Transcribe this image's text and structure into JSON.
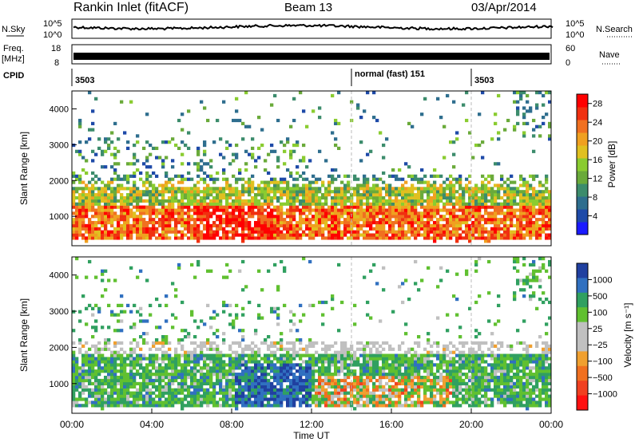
{
  "header": {
    "station": "Rankin Inlet (fitACF)",
    "beam": "Beam 13",
    "date": "03/Apr/2014"
  },
  "status_panels": {
    "nsky_label": "N.Sky",
    "nsearch_label": "N.Search",
    "noise_ticks": [
      "10^5",
      "10^0"
    ],
    "freq_label": "Freq.",
    "freq_unit": "[MHz]",
    "freq_ticks": [
      "18",
      "8"
    ],
    "nave_label": "Nave",
    "nave_ticks": [
      "60",
      "0"
    ],
    "cpid_label": "CPID",
    "cpid_segments": [
      {
        "label": "3503",
        "start_h": 0
      },
      {
        "label": "normal (fast) 151",
        "start_h": 14
      },
      {
        "label": "3503",
        "start_h": 20
      }
    ]
  },
  "colors": {
    "power_scale": [
      "#1a1aff",
      "#1e4aa8",
      "#2e6e8e",
      "#3c8c6c",
      "#6aaa3a",
      "#8acc30",
      "#e0c020",
      "#f0a020",
      "#f07020",
      "#f03010",
      "#ff0000"
    ],
    "velocity_scale": [
      "#2040a0",
      "#3070c0",
      "#30a060",
      "#60c030",
      "#c0c0c0",
      "#c0c0c0",
      "#f0a030",
      "#f07020",
      "#f04020",
      "#ff1010"
    ]
  },
  "chart_data": [
    {
      "type": "heatmap",
      "name": "power",
      "xlabel": "Time UT",
      "ylabel": "Slant Range [km]",
      "xlim": [
        0,
        24
      ],
      "ylim": [
        180,
        4500
      ],
      "y_ticks": [
        "1000",
        "2000",
        "3000",
        "4000"
      ],
      "colorbar_label": "Power [dB]",
      "colorbar_ticks": [
        "4",
        "8",
        "12",
        "16",
        "20",
        "24",
        "28"
      ],
      "colorbar_range": [
        0,
        30
      ],
      "data_boundaries_h": [
        14,
        20
      ]
    },
    {
      "type": "heatmap",
      "name": "velocity",
      "xlabel": "Time UT",
      "ylabel": "Slant Range [km]",
      "xlim": [
        0,
        24
      ],
      "ylim": [
        180,
        4500
      ],
      "y_ticks": [
        "1000",
        "2000",
        "3000",
        "4000"
      ],
      "x_ticks": [
        "00:00",
        "04:00",
        "08:00",
        "12:00",
        "16:00",
        "20:00",
        "00:00"
      ],
      "colorbar_label": "Velocity [m s⁻¹]",
      "colorbar_ticks": [
        "1000",
        "500",
        "100",
        "25",
        "−25",
        "−100",
        "−500",
        "−1000"
      ],
      "data_boundaries_h": [
        14,
        20
      ]
    }
  ]
}
